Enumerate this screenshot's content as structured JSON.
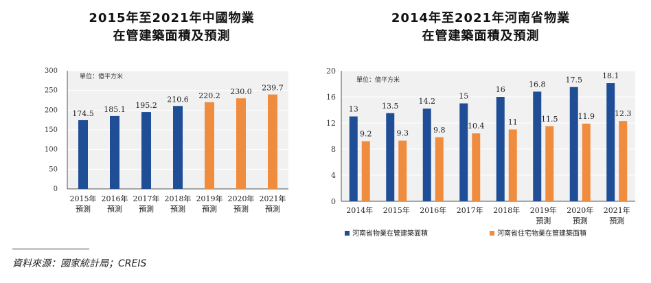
{
  "colors": {
    "blue": "#1f4e96",
    "orange": "#f08c3e",
    "plot_bg": "#f1f1f1",
    "grid": "#ffffff",
    "axis": "#555555"
  },
  "chart_data": [
    {
      "type": "bar",
      "title_line1": "2015年至2021年中國物業",
      "title_line2": "在管建築面積及預測",
      "unit_label": "單位：億平方米",
      "ylim": [
        0,
        300
      ],
      "yticks": [
        "0",
        "50",
        "100",
        "150",
        "200",
        "250",
        "300"
      ],
      "categories": [
        {
          "line1": "2015年",
          "line2": "預測"
        },
        {
          "line1": "2016年",
          "line2": "預測"
        },
        {
          "line1": "2017年",
          "line2": "預測"
        },
        {
          "line1": "2018年",
          "line2": "預測"
        },
        {
          "line1": "2019年",
          "line2": "預測"
        },
        {
          "line1": "2020年",
          "line2": "預測"
        },
        {
          "line1": "2021年",
          "line2": "預測"
        }
      ],
      "values": [
        174.5,
        185.1,
        195.2,
        210.6,
        220.2,
        230.0,
        239.7
      ],
      "labels": [
        "174.5",
        "185.1",
        "195.2",
        "210.6",
        "220.2",
        "230.0",
        "239.7"
      ],
      "bar_colors": [
        "blue",
        "blue",
        "blue",
        "blue",
        "orange",
        "orange",
        "orange"
      ]
    },
    {
      "type": "bar",
      "title_line1": "2014年至2021年河南省物業",
      "title_line2": "在管建築面積及預測",
      "unit_label": "單位：億平方米",
      "ylim": [
        0,
        20
      ],
      "yticks": [
        "0",
        "4",
        "8",
        "12",
        "16",
        "20"
      ],
      "categories": [
        {
          "line1": "2014年",
          "line2": ""
        },
        {
          "line1": "2015年",
          "line2": ""
        },
        {
          "line1": "2016年",
          "line2": ""
        },
        {
          "line1": "2017年",
          "line2": ""
        },
        {
          "line1": "2018年",
          "line2": ""
        },
        {
          "line1": "2019年",
          "line2": "預測"
        },
        {
          "line1": "2020年",
          "line2": "預測"
        },
        {
          "line1": "2021年",
          "line2": "預測"
        }
      ],
      "series": [
        {
          "name": "河南省物業在管建築面積",
          "color": "blue",
          "values": [
            13,
            13.5,
            14.2,
            15,
            16,
            16.8,
            17.5,
            18.1
          ],
          "labels": [
            "13",
            "13.5",
            "14.2",
            "15",
            "16",
            "16.8",
            "17.5",
            "18.1"
          ]
        },
        {
          "name": "河南省住宅物業在管建築面積",
          "color": "orange",
          "values": [
            9.2,
            9.3,
            9.8,
            10.4,
            11,
            11.5,
            11.9,
            12.3
          ],
          "labels": [
            "9.2",
            "9.3",
            "9.8",
            "10.4",
            "11",
            "11.5",
            "11.9",
            "12.3"
          ]
        }
      ]
    }
  ],
  "source_text": "資料來源：國家統計局；CREIS"
}
